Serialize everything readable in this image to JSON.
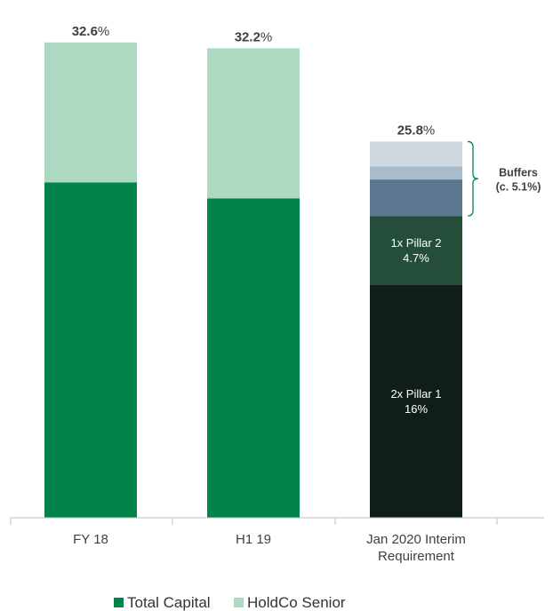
{
  "chart_data": {
    "type": "bar",
    "stacked": true,
    "title": "",
    "xlabel": "",
    "ylabel": "",
    "ylim": [
      0,
      33.5
    ],
    "grid": false,
    "legend_position": "bottom",
    "categories": [
      "FY 18",
      "H1 19",
      "Jan 2020 Interim Requirement"
    ],
    "category_lines": [
      [
        "FY 18"
      ],
      [
        "H1 19"
      ],
      [
        "Jan 2020 Interim",
        "Requirement"
      ]
    ],
    "totals": [
      {
        "value": "32.6",
        "unit": "%"
      },
      {
        "value": "32.2",
        "unit": "%"
      },
      {
        "value": "25.8",
        "unit": "%"
      }
    ],
    "series": [
      {
        "name": "Total Capital",
        "color": "#00844A",
        "values": [
          23.0,
          21.9,
          null
        ]
      },
      {
        "name": "HoldCo Senior",
        "color": "#ABD9C2",
        "values": [
          9.6,
          10.3,
          null
        ]
      }
    ],
    "requirement_segments": [
      {
        "lines": [
          "2x Pillar 1",
          "16%"
        ],
        "value": 16.0,
        "color": "#0F1E17"
      },
      {
        "lines": [
          "1x Pillar 2",
          "4.7%"
        ],
        "value": 4.7,
        "color": "#244E3A"
      },
      {
        "lines": [],
        "value": 2.5,
        "color": "#5A778F"
      },
      {
        "lines": [],
        "value": 0.9,
        "color": "#A9BCCB"
      },
      {
        "lines": [],
        "value": 1.7,
        "color": "#CDD8E1"
      }
    ],
    "annotation": {
      "lines": [
        "Buffers",
        "(c. 5.1%)"
      ],
      "bracket_color": "#00844A"
    }
  }
}
